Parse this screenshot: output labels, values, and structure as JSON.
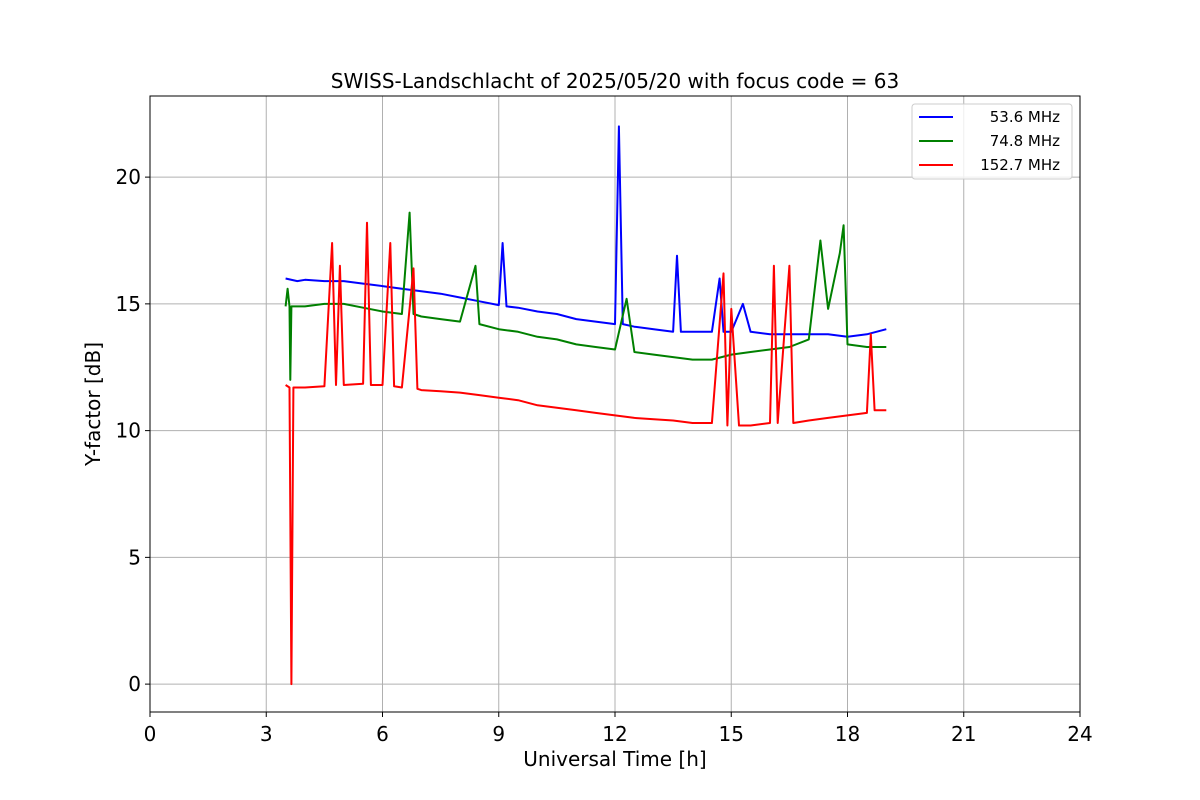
{
  "chart_data": {
    "type": "line",
    "title": "SWISS-Landschlacht of 2025/05/20 with focus code = 63",
    "xlabel": "Universal Time [h]",
    "ylabel": "Y-factor [dB]",
    "xlim": [
      0,
      24
    ],
    "ylim": [
      -1.1,
      23.2
    ],
    "xticks": [
      0,
      3,
      6,
      9,
      12,
      15,
      18,
      21,
      24
    ],
    "xtick_labels": [
      "0",
      "3",
      "6",
      "9",
      "12",
      "15",
      "18",
      "21",
      "24"
    ],
    "yticks": [
      0,
      5,
      10,
      15,
      20
    ],
    "ytick_labels": [
      "0",
      "5",
      "10",
      "15",
      "20"
    ],
    "grid": true,
    "legend_position": "top-right",
    "series": [
      {
        "name": "53.6 MHz",
        "color": "#0000ff",
        "points": [
          [
            3.5,
            16.0
          ],
          [
            3.8,
            15.9
          ],
          [
            4.0,
            15.95
          ],
          [
            4.5,
            15.9
          ],
          [
            5.0,
            15.9
          ],
          [
            5.5,
            15.8
          ],
          [
            6.0,
            15.7
          ],
          [
            6.5,
            15.6
          ],
          [
            7.0,
            15.5
          ],
          [
            7.5,
            15.4
          ],
          [
            8.0,
            15.25
          ],
          [
            8.5,
            15.1
          ],
          [
            9.0,
            14.95
          ],
          [
            9.1,
            17.4
          ],
          [
            9.2,
            14.9
          ],
          [
            9.5,
            14.85
          ],
          [
            10.0,
            14.7
          ],
          [
            10.5,
            14.6
          ],
          [
            11.0,
            14.4
          ],
          [
            11.5,
            14.3
          ],
          [
            12.0,
            14.2
          ],
          [
            12.1,
            22.0
          ],
          [
            12.2,
            14.2
          ],
          [
            12.5,
            14.1
          ],
          [
            13.0,
            14.0
          ],
          [
            13.5,
            13.9
          ],
          [
            13.6,
            16.9
          ],
          [
            13.7,
            13.9
          ],
          [
            14.0,
            13.9
          ],
          [
            14.5,
            13.9
          ],
          [
            14.7,
            16.0
          ],
          [
            14.8,
            13.9
          ],
          [
            15.0,
            13.9
          ],
          [
            15.3,
            15.0
          ],
          [
            15.5,
            13.9
          ],
          [
            16.0,
            13.8
          ],
          [
            16.5,
            13.8
          ],
          [
            17.0,
            13.8
          ],
          [
            17.5,
            13.8
          ],
          [
            18.0,
            13.7
          ],
          [
            18.5,
            13.8
          ],
          [
            19.0,
            14.0
          ]
        ]
      },
      {
        "name": "74.8 MHz",
        "color": "#008000",
        "points": [
          [
            3.5,
            14.9
          ],
          [
            3.55,
            15.6
          ],
          [
            3.6,
            14.9
          ],
          [
            3.62,
            12.0
          ],
          [
            3.65,
            14.9
          ],
          [
            4.0,
            14.9
          ],
          [
            4.5,
            15.0
          ],
          [
            5.0,
            15.0
          ],
          [
            5.5,
            14.85
          ],
          [
            6.0,
            14.7
          ],
          [
            6.5,
            14.6
          ],
          [
            6.7,
            18.6
          ],
          [
            6.8,
            14.6
          ],
          [
            7.0,
            14.5
          ],
          [
            7.5,
            14.4
          ],
          [
            8.0,
            14.3
          ],
          [
            8.4,
            16.5
          ],
          [
            8.5,
            14.2
          ],
          [
            9.0,
            14.0
          ],
          [
            9.5,
            13.9
          ],
          [
            10.0,
            13.7
          ],
          [
            10.5,
            13.6
          ],
          [
            11.0,
            13.4
          ],
          [
            11.5,
            13.3
          ],
          [
            12.0,
            13.2
          ],
          [
            12.3,
            15.2
          ],
          [
            12.5,
            13.1
          ],
          [
            13.0,
            13.0
          ],
          [
            13.5,
            12.9
          ],
          [
            14.0,
            12.8
          ],
          [
            14.5,
            12.8
          ],
          [
            15.0,
            13.0
          ],
          [
            15.5,
            13.1
          ],
          [
            16.0,
            13.2
          ],
          [
            16.5,
            13.3
          ],
          [
            17.0,
            13.6
          ],
          [
            17.3,
            17.5
          ],
          [
            17.5,
            14.8
          ],
          [
            17.8,
            17.0
          ],
          [
            17.9,
            18.1
          ],
          [
            18.0,
            13.4
          ],
          [
            18.5,
            13.3
          ],
          [
            19.0,
            13.3
          ]
        ]
      },
      {
        "name": "152.7 MHz",
        "color": "#ff0000",
        "points": [
          [
            3.5,
            11.8
          ],
          [
            3.6,
            11.7
          ],
          [
            3.65,
            0.0
          ],
          [
            3.7,
            11.7
          ],
          [
            4.0,
            11.7
          ],
          [
            4.5,
            11.75
          ],
          [
            4.7,
            17.4
          ],
          [
            4.8,
            11.8
          ],
          [
            4.9,
            16.5
          ],
          [
            5.0,
            11.8
          ],
          [
            5.5,
            11.85
          ],
          [
            5.6,
            18.2
          ],
          [
            5.7,
            11.8
          ],
          [
            6.0,
            11.8
          ],
          [
            6.2,
            17.4
          ],
          [
            6.3,
            11.75
          ],
          [
            6.5,
            11.7
          ],
          [
            6.8,
            16.4
          ],
          [
            6.9,
            11.65
          ],
          [
            7.0,
            11.6
          ],
          [
            7.5,
            11.55
          ],
          [
            8.0,
            11.5
          ],
          [
            8.5,
            11.4
          ],
          [
            9.0,
            11.3
          ],
          [
            9.5,
            11.2
          ],
          [
            10.0,
            11.0
          ],
          [
            10.5,
            10.9
          ],
          [
            11.0,
            10.8
          ],
          [
            11.5,
            10.7
          ],
          [
            12.0,
            10.6
          ],
          [
            12.5,
            10.5
          ],
          [
            13.0,
            10.45
          ],
          [
            13.5,
            10.4
          ],
          [
            14.0,
            10.3
          ],
          [
            14.5,
            10.3
          ],
          [
            14.8,
            16.2
          ],
          [
            14.9,
            10.2
          ],
          [
            15.0,
            14.8
          ],
          [
            15.2,
            10.2
          ],
          [
            15.5,
            10.2
          ],
          [
            16.0,
            10.3
          ],
          [
            16.1,
            16.5
          ],
          [
            16.2,
            10.3
          ],
          [
            16.5,
            16.5
          ],
          [
            16.6,
            10.3
          ],
          [
            17.0,
            10.4
          ],
          [
            17.5,
            10.5
          ],
          [
            18.0,
            10.6
          ],
          [
            18.5,
            10.7
          ],
          [
            18.6,
            13.8
          ],
          [
            18.7,
            10.8
          ],
          [
            19.0,
            10.8
          ]
        ]
      }
    ]
  }
}
